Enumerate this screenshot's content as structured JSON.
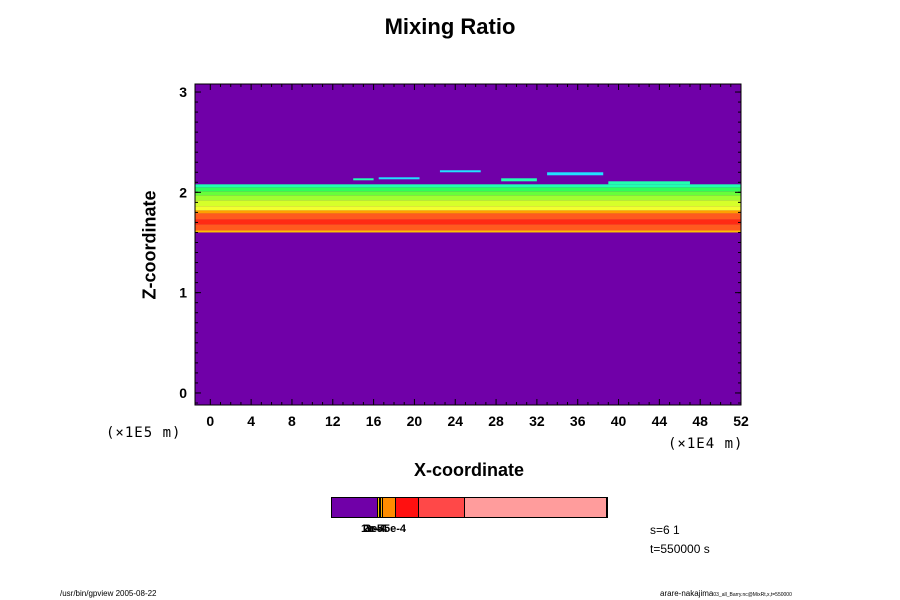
{
  "chart_data": {
    "type": "heatmap",
    "title": "Mixing Ratio",
    "xlabel": "X-coordinate",
    "ylabel": "Z-coordinate",
    "x_unit": "(×1E4 m)",
    "y_unit": "(×1E5 m)",
    "xlim": [
      -1.5,
      52
    ],
    "ylim": [
      -0.12,
      3.08
    ],
    "x_ticks": [
      0,
      4,
      8,
      12,
      16,
      20,
      24,
      28,
      32,
      36,
      40,
      44,
      48,
      52
    ],
    "y_ticks": [
      0,
      1,
      2,
      3
    ],
    "background_color": "#7000a8",
    "bands": [
      {
        "z_from": 1.6,
        "z_to": 1.62,
        "color": "#ffbf00"
      },
      {
        "z_from": 1.62,
        "z_to": 1.68,
        "color": "#ff5a1e"
      },
      {
        "z_from": 1.68,
        "z_to": 1.73,
        "color": "#ff2a14"
      },
      {
        "z_from": 1.73,
        "z_to": 1.79,
        "color": "#ff5a1e"
      },
      {
        "z_from": 1.79,
        "z_to": 1.82,
        "color": "#ffa000"
      },
      {
        "z_from": 1.82,
        "z_to": 1.86,
        "color": "#f2ff30"
      },
      {
        "z_from": 1.86,
        "z_to": 1.92,
        "color": "#d6ff2a"
      },
      {
        "z_from": 1.92,
        "z_to": 1.97,
        "color": "#a0ff30"
      },
      {
        "z_from": 1.97,
        "z_to": 2.01,
        "color": "#66ff3a"
      },
      {
        "z_from": 2.01,
        "z_to": 2.05,
        "color": "#2eff5a"
      },
      {
        "z_from": 2.05,
        "z_to": 2.08,
        "color": "#22ffb0"
      }
    ],
    "patches": [
      {
        "x": [
          16.5,
          20.5
        ],
        "z": [
          2.13,
          2.15
        ],
        "color": "#22e0ff"
      },
      {
        "x": [
          22.5,
          26.5
        ],
        "z": [
          2.2,
          2.22
        ],
        "color": "#22e0ff"
      },
      {
        "x": [
          28.5,
          32.0
        ],
        "z": [
          2.11,
          2.14
        ],
        "color": "#22ffb0"
      },
      {
        "x": [
          33.0,
          38.5
        ],
        "z": [
          2.17,
          2.2
        ],
        "color": "#22e0ff"
      },
      {
        "x": [
          39.0,
          47.0
        ],
        "z": [
          2.08,
          2.11
        ],
        "color": "#22ffb0"
      },
      {
        "x": [
          14.0,
          16.0
        ],
        "z": [
          2.12,
          2.14
        ],
        "color": "#22ffb0"
      }
    ],
    "colorbar": {
      "segments": [
        {
          "color": "#7000a8",
          "weight": 46
        },
        {
          "color": "#f5c200",
          "weight": 2
        },
        {
          "color": "#a06000",
          "weight": 1
        },
        {
          "color": "#ffb000",
          "weight": 2
        },
        {
          "color": "#ff8c00",
          "weight": 13
        },
        {
          "color": "#ff1010",
          "weight": 23
        },
        {
          "color": "#ff4848",
          "weight": 46
        },
        {
          "color": "#ff9c9c",
          "weight": 142
        }
      ],
      "labels": [
        "1e-5",
        "2e-4",
        "3e-4",
        "5e-4"
      ]
    }
  },
  "info": {
    "line1": "s=6 1",
    "line2": "t=550000 s"
  },
  "footer": {
    "left": "/usr/bin/gpview 2005-08-22",
    "right_main": "arare-nakajima",
    "right_small": "03_all_Barry.nc@MixRt,x,t=550000"
  }
}
